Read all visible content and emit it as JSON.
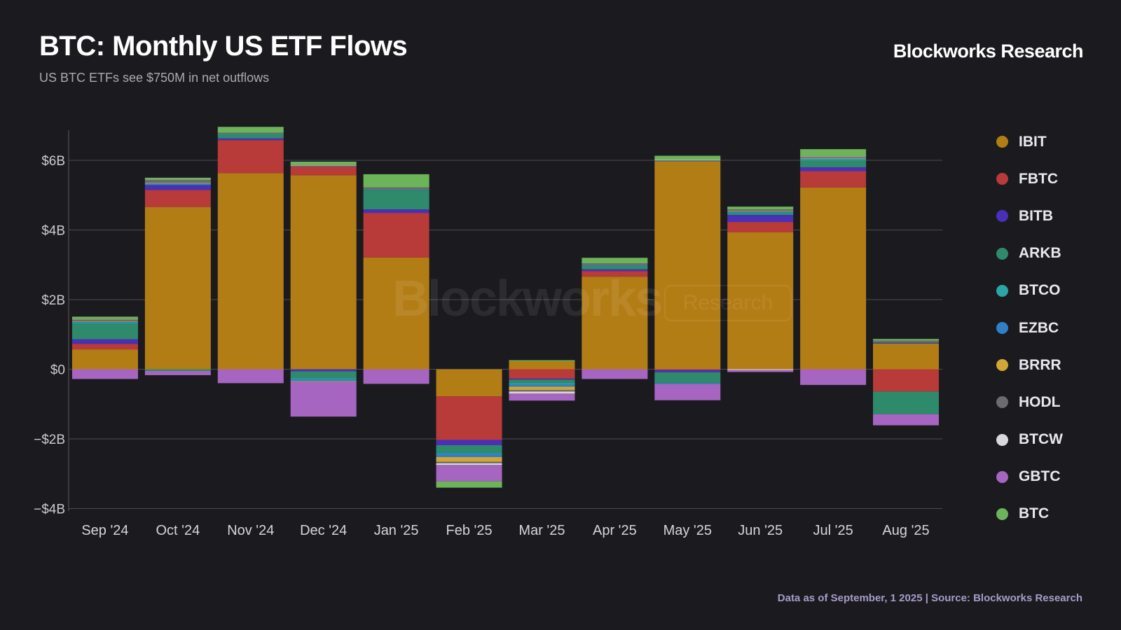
{
  "header": {
    "title": "BTC: Monthly US ETF Flows",
    "subtitle": "US BTC ETFs see $750M in net outflows",
    "brand": "Blockworks Research"
  },
  "watermark": {
    "main": "Blockworks",
    "tag": "Research"
  },
  "footer": {
    "source": "Data as of September, 1 2025 | Source: Blockworks Research"
  },
  "chart_data": {
    "type": "bar",
    "stacked": true,
    "ylim": [
      -4,
      6.8
    ],
    "yticks": [
      {
        "value": 6,
        "label": "$6B"
      },
      {
        "value": 4,
        "label": "$4B"
      },
      {
        "value": 2,
        "label": "$2B"
      },
      {
        "value": 0,
        "label": "$0"
      },
      {
        "value": -2,
        "label": "−$2B"
      },
      {
        "value": -4,
        "label": "−$4B"
      }
    ],
    "grid": true,
    "legend_position": "right",
    "categories": [
      "Sep '24",
      "Oct '24",
      "Nov '24",
      "Dec '24",
      "Jan '25",
      "Feb '25",
      "Mar '25",
      "Apr '25",
      "May '25",
      "Jun '25",
      "Jul '25",
      "Aug '25"
    ],
    "series": [
      {
        "name": "IBIT",
        "color": "#b37d16",
        "values": [
          0.57,
          4.66,
          5.63,
          5.57,
          3.21,
          -0.78,
          0.23,
          2.66,
          5.96,
          3.93,
          5.22,
          0.74
        ]
      },
      {
        "name": "FBTC",
        "color": "#b83a39",
        "values": [
          0.16,
          0.49,
          0.95,
          0.25,
          1.28,
          -1.25,
          -0.27,
          0.16,
          -0.02,
          0.3,
          0.47,
          -0.64
        ]
      },
      {
        "name": "BITB",
        "color": "#4a30b8",
        "values": [
          0.13,
          0.14,
          0.05,
          -0.06,
          0.1,
          -0.15,
          -0.03,
          0.05,
          -0.07,
          0.2,
          0.11,
          0.02
        ]
      },
      {
        "name": "ARKB",
        "color": "#2f8a6c",
        "values": [
          0.45,
          -0.05,
          0.1,
          -0.2,
          0.55,
          -0.22,
          -0.1,
          0.08,
          -0.3,
          0.05,
          0.2,
          -0.65
        ]
      },
      {
        "name": "BTCO",
        "color": "#2aa6a6",
        "values": [
          0.03,
          0.02,
          0.02,
          -0.03,
          0.01,
          -0.02,
          -0.04,
          0.02,
          -0.01,
          0.02,
          0.03,
          0.01
        ]
      },
      {
        "name": "EZBC",
        "color": "#2f80c8",
        "values": [
          0.02,
          0.03,
          0.01,
          -0.05,
          0.02,
          -0.1,
          -0.06,
          0.02,
          -0.02,
          0.03,
          0.02,
          0.0
        ]
      },
      {
        "name": "BRRR",
        "color": "#d1a637",
        "values": [
          0.02,
          0.02,
          0.01,
          -0.02,
          0.01,
          -0.14,
          -0.1,
          0.01,
          0.0,
          0.02,
          0.02,
          0.0
        ]
      },
      {
        "name": "HODL",
        "color": "#6b6b72",
        "values": [
          0.05,
          0.08,
          0.02,
          0.03,
          0.04,
          -0.04,
          -0.04,
          0.04,
          0.04,
          0.04,
          0.04,
          0.05
        ]
      },
      {
        "name": "BTCW",
        "color": "#d9d9dc",
        "values": [
          0.01,
          0.01,
          0.0,
          0.01,
          0.0,
          -0.05,
          -0.06,
          0.0,
          0.01,
          -0.02,
          0.01,
          0.0
        ]
      },
      {
        "name": "GBTC",
        "color": "#a565c1",
        "values": [
          -0.28,
          -0.12,
          -0.4,
          -1.0,
          -0.42,
          -0.47,
          -0.2,
          -0.28,
          -0.47,
          -0.06,
          -0.45,
          -0.32
        ]
      },
      {
        "name": "BTC",
        "color": "#6db35a",
        "values": [
          0.07,
          0.05,
          0.17,
          0.1,
          0.38,
          -0.18,
          0.03,
          0.16,
          0.12,
          0.08,
          0.2,
          0.05
        ]
      }
    ]
  }
}
